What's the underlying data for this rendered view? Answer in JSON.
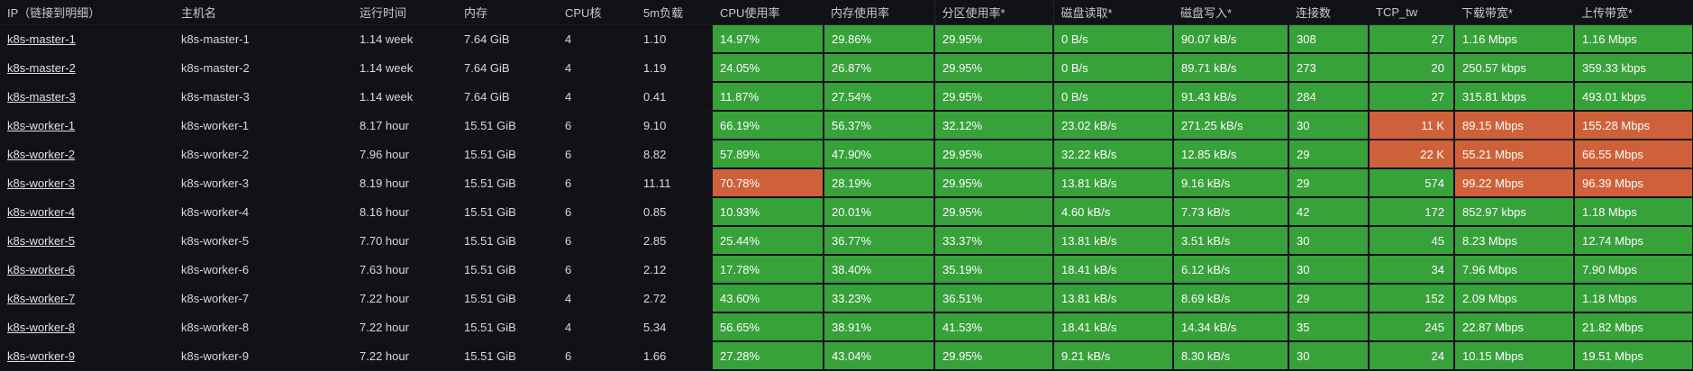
{
  "columns": [
    {
      "key": "ip",
      "label": "IP（链接到明细）"
    },
    {
      "key": "host",
      "label": "主机名"
    },
    {
      "key": "uptime",
      "label": "运行时间"
    },
    {
      "key": "mem",
      "label": "内存"
    },
    {
      "key": "cpu",
      "label": "CPU核"
    },
    {
      "key": "load5m",
      "label": "5m负载"
    },
    {
      "key": "cpu_usage",
      "label": "CPU使用率"
    },
    {
      "key": "mem_usage",
      "label": "内存使用率"
    },
    {
      "key": "part_usage",
      "label": "分区使用率*"
    },
    {
      "key": "disk_read",
      "label": "磁盘读取*"
    },
    {
      "key": "disk_write",
      "label": "磁盘写入*"
    },
    {
      "key": "conn",
      "label": "连接数"
    },
    {
      "key": "tcp_tw",
      "label": "TCP_tw"
    },
    {
      "key": "down_bw",
      "label": "下载带宽*"
    },
    {
      "key": "up_bw",
      "label": "上传带宽*"
    }
  ],
  "colors": {
    "ok": "#37a13a",
    "warn": "#ce6139",
    "background": "#111217"
  },
  "rows": [
    {
      "ip": "k8s-master-1",
      "host": "k8s-master-1",
      "uptime": "1.14 week",
      "mem": "7.64 GiB",
      "cpu": "4",
      "load5m": "1.10",
      "cpu_usage": "14.97%",
      "mem_usage": "29.86%",
      "part_usage": "29.95%",
      "disk_read": "0 B/s",
      "disk_write": "90.07 kB/s",
      "conn": "308",
      "tcp_tw": "27",
      "down_bw": "1.16 Mbps",
      "up_bw": "1.16 Mbps",
      "warn": []
    },
    {
      "ip": "k8s-master-2",
      "host": "k8s-master-2",
      "uptime": "1.14 week",
      "mem": "7.64 GiB",
      "cpu": "4",
      "load5m": "1.19",
      "cpu_usage": "24.05%",
      "mem_usage": "26.87%",
      "part_usage": "29.95%",
      "disk_read": "0 B/s",
      "disk_write": "89.71 kB/s",
      "conn": "273",
      "tcp_tw": "20",
      "down_bw": "250.57 kbps",
      "up_bw": "359.33 kbps",
      "warn": []
    },
    {
      "ip": "k8s-master-3",
      "host": "k8s-master-3",
      "uptime": "1.14 week",
      "mem": "7.64 GiB",
      "cpu": "4",
      "load5m": "0.41",
      "cpu_usage": "11.87%",
      "mem_usage": "27.54%",
      "part_usage": "29.95%",
      "disk_read": "0 B/s",
      "disk_write": "91.43 kB/s",
      "conn": "284",
      "tcp_tw": "27",
      "down_bw": "315.81 kbps",
      "up_bw": "493.01 kbps",
      "warn": []
    },
    {
      "ip": "k8s-worker-1",
      "host": "k8s-worker-1",
      "uptime": "8.17 hour",
      "mem": "15.51 GiB",
      "cpu": "6",
      "load5m": "9.10",
      "cpu_usage": "66.19%",
      "mem_usage": "56.37%",
      "part_usage": "32.12%",
      "disk_read": "23.02 kB/s",
      "disk_write": "271.25 kB/s",
      "conn": "30",
      "tcp_tw": "11 K",
      "down_bw": "89.15 Mbps",
      "up_bw": "155.28 Mbps",
      "warn": [
        "tcp_tw",
        "down_bw",
        "up_bw"
      ]
    },
    {
      "ip": "k8s-worker-2",
      "host": "k8s-worker-2",
      "uptime": "7.96 hour",
      "mem": "15.51 GiB",
      "cpu": "6",
      "load5m": "8.82",
      "cpu_usage": "57.89%",
      "mem_usage": "47.90%",
      "part_usage": "29.95%",
      "disk_read": "32.22 kB/s",
      "disk_write": "12.85 kB/s",
      "conn": "29",
      "tcp_tw": "22 K",
      "down_bw": "55.21 Mbps",
      "up_bw": "66.55 Mbps",
      "warn": [
        "tcp_tw",
        "down_bw",
        "up_bw"
      ]
    },
    {
      "ip": "k8s-worker-3",
      "host": "k8s-worker-3",
      "uptime": "8.19 hour",
      "mem": "15.51 GiB",
      "cpu": "6",
      "load5m": "11.11",
      "cpu_usage": "70.78%",
      "mem_usage": "28.19%",
      "part_usage": "29.95%",
      "disk_read": "13.81 kB/s",
      "disk_write": "9.16 kB/s",
      "conn": "29",
      "tcp_tw": "574",
      "down_bw": "99.22 Mbps",
      "up_bw": "96.39 Mbps",
      "warn": [
        "cpu_usage",
        "down_bw",
        "up_bw"
      ]
    },
    {
      "ip": "k8s-worker-4",
      "host": "k8s-worker-4",
      "uptime": "8.16 hour",
      "mem": "15.51 GiB",
      "cpu": "6",
      "load5m": "0.85",
      "cpu_usage": "10.93%",
      "mem_usage": "20.01%",
      "part_usage": "29.95%",
      "disk_read": "4.60 kB/s",
      "disk_write": "7.73 kB/s",
      "conn": "42",
      "tcp_tw": "172",
      "down_bw": "852.97 kbps",
      "up_bw": "1.18 Mbps",
      "warn": []
    },
    {
      "ip": "k8s-worker-5",
      "host": "k8s-worker-5",
      "uptime": "7.70 hour",
      "mem": "15.51 GiB",
      "cpu": "6",
      "load5m": "2.85",
      "cpu_usage": "25.44%",
      "mem_usage": "36.77%",
      "part_usage": "33.37%",
      "disk_read": "13.81 kB/s",
      "disk_write": "3.51 kB/s",
      "conn": "30",
      "tcp_tw": "45",
      "down_bw": "8.23 Mbps",
      "up_bw": "12.74 Mbps",
      "warn": []
    },
    {
      "ip": "k8s-worker-6",
      "host": "k8s-worker-6",
      "uptime": "7.63 hour",
      "mem": "15.51 GiB",
      "cpu": "6",
      "load5m": "2.12",
      "cpu_usage": "17.78%",
      "mem_usage": "38.40%",
      "part_usage": "35.19%",
      "disk_read": "18.41 kB/s",
      "disk_write": "6.12 kB/s",
      "conn": "30",
      "tcp_tw": "34",
      "down_bw": "7.96 Mbps",
      "up_bw": "7.90 Mbps",
      "warn": []
    },
    {
      "ip": "k8s-worker-7",
      "host": "k8s-worker-7",
      "uptime": "7.22 hour",
      "mem": "15.51 GiB",
      "cpu": "4",
      "load5m": "2.72",
      "cpu_usage": "43.60%",
      "mem_usage": "33.23%",
      "part_usage": "36.51%",
      "disk_read": "13.81 kB/s",
      "disk_write": "8.69 kB/s",
      "conn": "29",
      "tcp_tw": "152",
      "down_bw": "2.09 Mbps",
      "up_bw": "1.18 Mbps",
      "warn": []
    },
    {
      "ip": "k8s-worker-8",
      "host": "k8s-worker-8",
      "uptime": "7.22 hour",
      "mem": "15.51 GiB",
      "cpu": "4",
      "load5m": "5.34",
      "cpu_usage": "56.65%",
      "mem_usage": "38.91%",
      "part_usage": "41.53%",
      "disk_read": "18.41 kB/s",
      "disk_write": "14.34 kB/s",
      "conn": "35",
      "tcp_tw": "245",
      "down_bw": "22.87 Mbps",
      "up_bw": "21.82 Mbps",
      "warn": []
    },
    {
      "ip": "k8s-worker-9",
      "host": "k8s-worker-9",
      "uptime": "7.22 hour",
      "mem": "15.51 GiB",
      "cpu": "6",
      "load5m": "1.66",
      "cpu_usage": "27.28%",
      "mem_usage": "43.04%",
      "part_usage": "29.95%",
      "disk_read": "9.21 kB/s",
      "disk_write": "8.30 kB/s",
      "conn": "30",
      "tcp_tw": "24",
      "down_bw": "10.15 Mbps",
      "up_bw": "19.51 Mbps",
      "warn": []
    }
  ]
}
